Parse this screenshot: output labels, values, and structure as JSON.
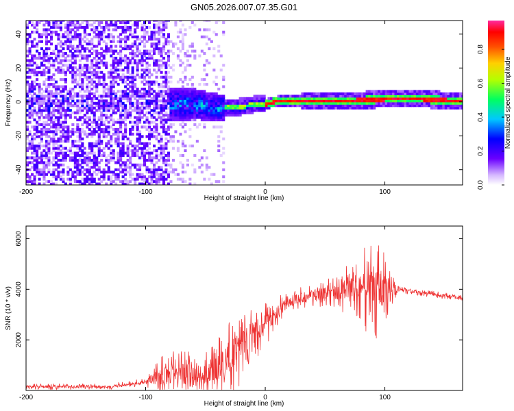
{
  "title": "GN05.2026.007.07.35.G01",
  "chart_data": [
    {
      "type": "heatmap",
      "name": "spectrogram",
      "xlabel": "Height of straight line (km)",
      "ylabel": "Frequency (Hz)",
      "xlim": [
        -200,
        165
      ],
      "ylim": [
        -49,
        48
      ],
      "xticks": [
        -200,
        -100,
        0,
        100
      ],
      "yticks": [
        -40,
        -20,
        0,
        20,
        40
      ],
      "colorbar": {
        "label": "Normalized spectral amplitude",
        "range": [
          0,
          0.97
        ],
        "ticks": [
          "0.0",
          "0.2",
          "0.4",
          "0.6",
          "0.8"
        ],
        "tick_values": [
          0.0,
          0.2,
          0.4,
          0.6,
          0.8
        ]
      },
      "ridge_freq": [
        {
          "x": -100,
          "y": -3
        },
        {
          "x": -60,
          "y": -2
        },
        {
          "x": -40,
          "y": -4
        },
        {
          "x": -25,
          "y": -4
        },
        {
          "x": -10,
          "y": -2
        },
        {
          "x": 0,
          "y": -2
        },
        {
          "x": 10,
          "y": 0
        },
        {
          "x": 20,
          "y": 0
        },
        {
          "x": 30,
          "y": 0
        },
        {
          "x": 60,
          "y": 0
        },
        {
          "x": 100,
          "y": 1
        },
        {
          "x": 130,
          "y": 1
        },
        {
          "x": 165,
          "y": 0
        }
      ]
    },
    {
      "type": "line",
      "name": "snr",
      "xlabel": "Height of straight line (km)",
      "ylabel": "SNR (10 * v/v)",
      "xlim": [
        -200,
        165
      ],
      "ylim": [
        0,
        6500
      ],
      "xticks": [
        -200,
        -100,
        0,
        100
      ],
      "yticks": [
        2000,
        4000,
        6000
      ],
      "color": "#ee3333",
      "envelope": [
        {
          "x": -200,
          "base": 150,
          "amp": 120
        },
        {
          "x": -130,
          "base": 150,
          "amp": 120
        },
        {
          "x": -100,
          "base": 350,
          "amp": 150
        },
        {
          "x": -90,
          "base": 500,
          "amp": 800
        },
        {
          "x": -70,
          "base": 700,
          "amp": 1000
        },
        {
          "x": -55,
          "base": 500,
          "amp": 800
        },
        {
          "x": -45,
          "base": 600,
          "amp": 1200
        },
        {
          "x": -30,
          "base": 1200,
          "amp": 1600
        },
        {
          "x": -20,
          "base": 1700,
          "amp": 1500
        },
        {
          "x": -10,
          "base": 2200,
          "amp": 1300
        },
        {
          "x": 0,
          "base": 2600,
          "amp": 900
        },
        {
          "x": 10,
          "base": 3100,
          "amp": 600
        },
        {
          "x": 20,
          "base": 3500,
          "amp": 500
        },
        {
          "x": 40,
          "base": 3800,
          "amp": 500
        },
        {
          "x": 60,
          "base": 3900,
          "amp": 600
        },
        {
          "x": 80,
          "base": 4000,
          "amp": 1600
        },
        {
          "x": 95,
          "base": 4000,
          "amp": 2000
        },
        {
          "x": 105,
          "base": 4000,
          "amp": 1000
        },
        {
          "x": 110,
          "base": 4000,
          "amp": 150
        },
        {
          "x": 165,
          "base": 3650,
          "amp": 120
        }
      ]
    }
  ]
}
